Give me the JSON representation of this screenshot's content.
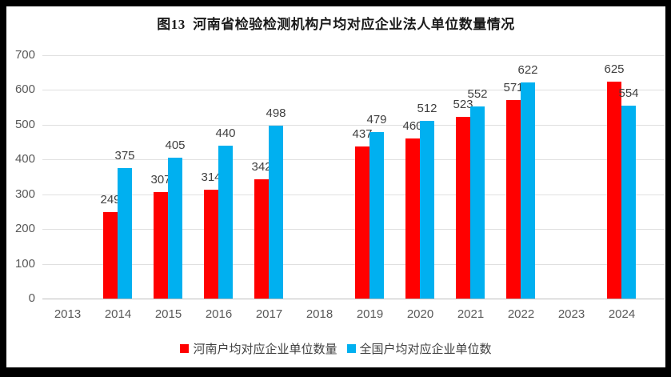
{
  "title": "图13  河南省检验检测机构户均对应企业法人单位数量情况",
  "chart_data": {
    "type": "bar",
    "title": "图13  河南省检验检测机构户均对应企业法人单位数量情况",
    "categories": [
      "2013",
      "2014",
      "2015",
      "2016",
      "2017",
      "2018",
      "2019",
      "2020",
      "2021",
      "2022",
      "2023",
      "2024"
    ],
    "series": [
      {
        "name": "河南户均对应企业单位数量",
        "color": "#FF0000",
        "values": [
          null,
          249,
          307,
          314,
          342,
          null,
          437,
          460,
          523,
          571,
          null,
          625
        ]
      },
      {
        "name": "全国户均对应企业单位数",
        "color": "#00B0F0",
        "values": [
          null,
          375,
          405,
          440,
          498,
          null,
          479,
          512,
          552,
          622,
          null,
          554
        ]
      }
    ],
    "xlabel": "",
    "ylabel": "",
    "ylim": [
      0,
      700
    ],
    "yticks": [
      0,
      100,
      200,
      300,
      400,
      500,
      600,
      700
    ],
    "grid": true,
    "legend_position": "bottom",
    "data_labels": true
  },
  "colors": {
    "henan_series": "#FF0000",
    "national_series": "#00B0F0",
    "gridline": "#E0E0E0",
    "axis_line": "#BFBFBF",
    "axis_text": "#595959",
    "data_label_text": "#404040",
    "title_text": "#1A1A1A",
    "frame_border": "#000000",
    "background": "#FFFFFF"
  }
}
